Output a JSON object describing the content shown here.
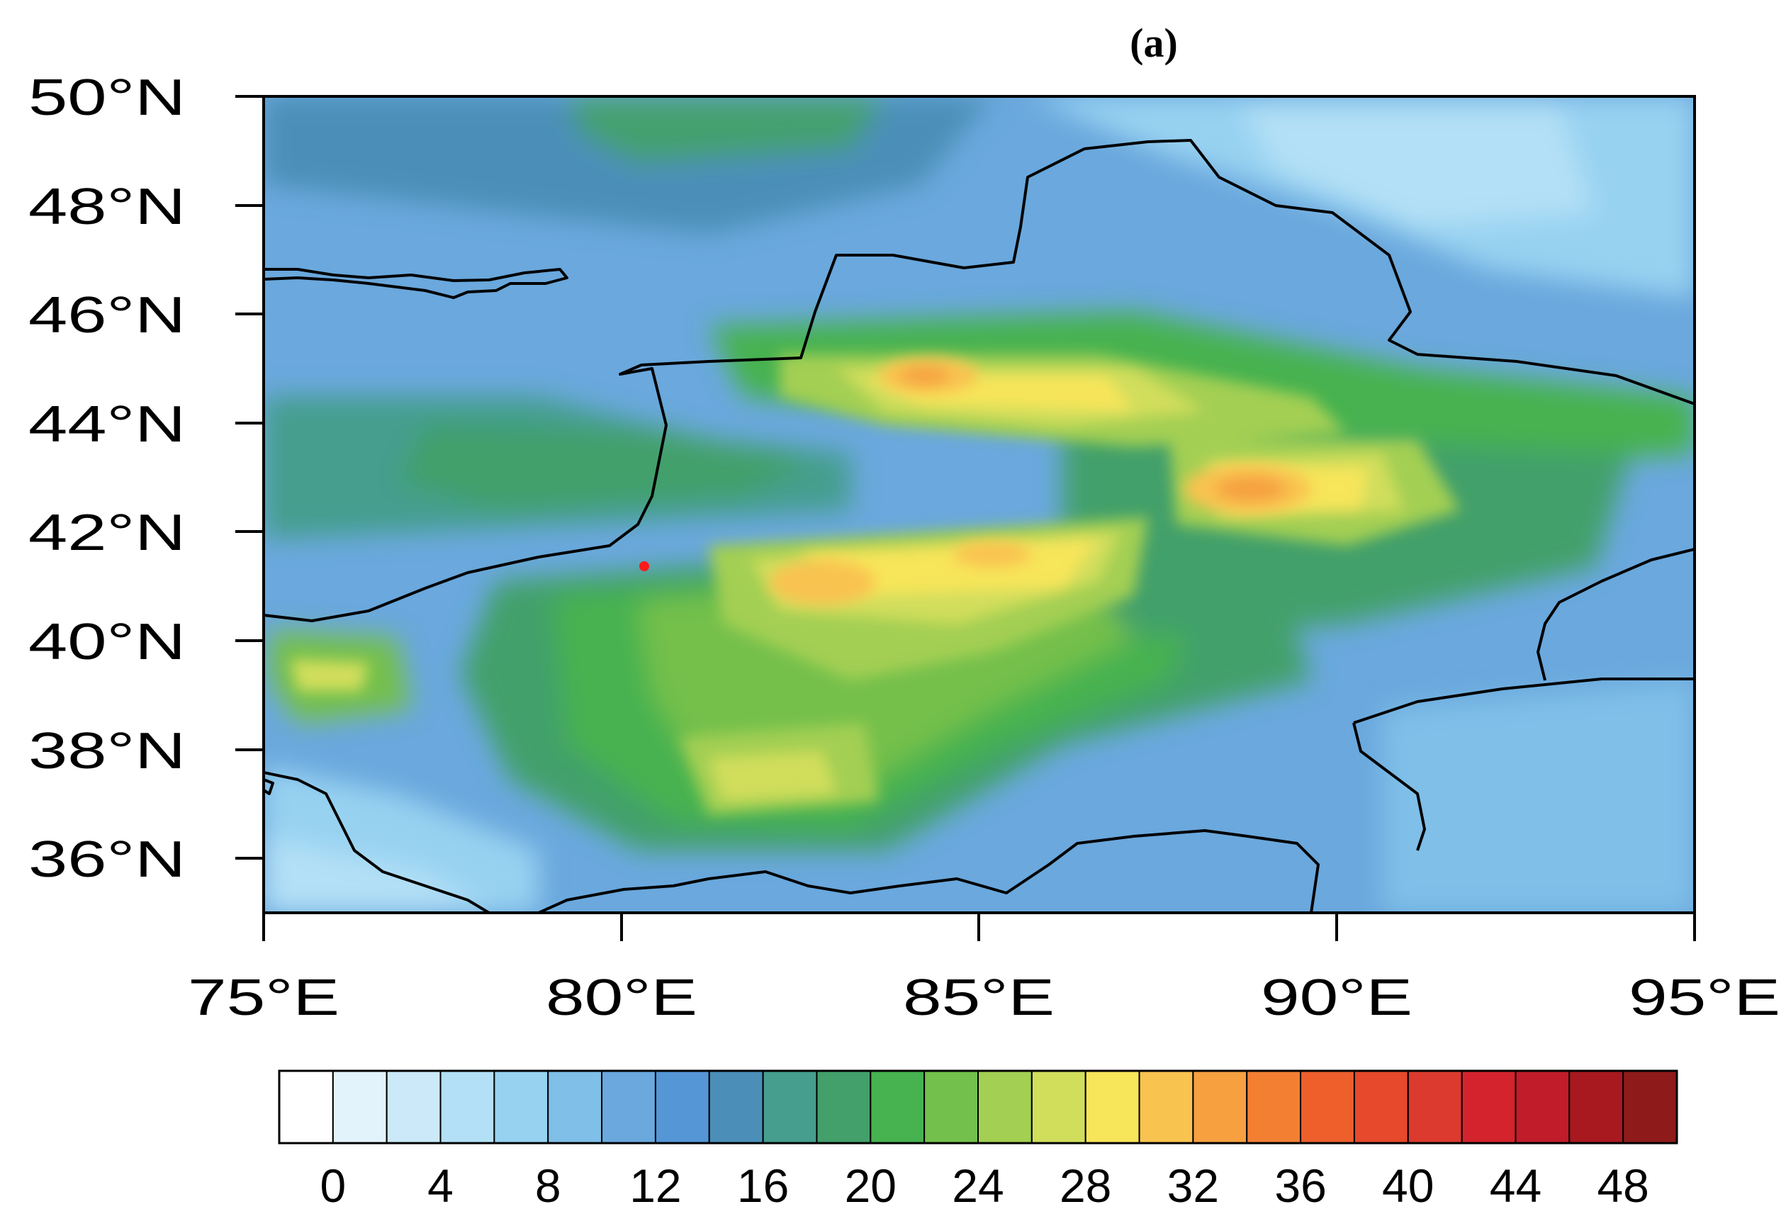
{
  "panel_label": "(a)",
  "map": {
    "lat_ticks": [
      "50°N",
      "48°N",
      "46°N",
      "44°N",
      "42°N",
      "40°N",
      "38°N",
      "36°N"
    ],
    "lon_ticks": [
      "75°E",
      "80°E",
      "85°E",
      "90°E",
      "95°E"
    ],
    "lat_range": [
      35,
      50
    ],
    "lon_range": [
      75,
      95
    ],
    "marker": {
      "lon": 80.3,
      "lat": 41.3,
      "color": "#ff1a1a"
    }
  },
  "colorbar": {
    "labels": [
      "0",
      "4",
      "8",
      "12",
      "16",
      "20",
      "24",
      "28",
      "32",
      "36",
      "40",
      "44",
      "48"
    ],
    "colors": [
      "#ffffff",
      "#e3f3fb",
      "#cbe9f8",
      "#b3e0f6",
      "#97d2f1",
      "#7fbfe8",
      "#6aa8dd",
      "#5596d6",
      "#4b8fb8",
      "#459e8e",
      "#43a06a",
      "#46b250",
      "#74c04c",
      "#a3cf52",
      "#d1de5c",
      "#f7e55a",
      "#f9c350",
      "#f6a040",
      "#f37f33",
      "#ee5f2c",
      "#e6492b",
      "#dc3a2e",
      "#d4232d",
      "#c01c2a",
      "#a8181f",
      "#8f1a1a"
    ]
  }
}
